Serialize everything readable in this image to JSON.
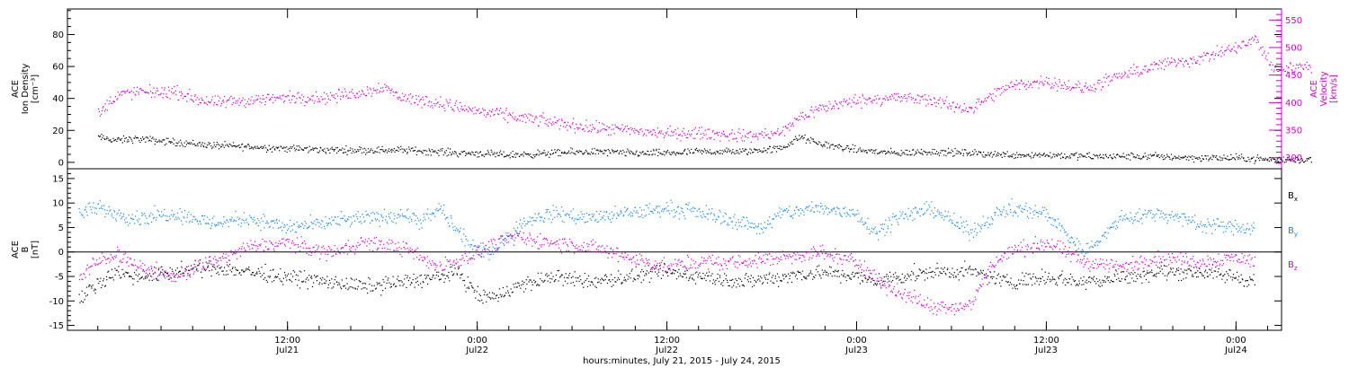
{
  "chart_data": [
    {
      "type": "scatter",
      "panel": "top",
      "left_axis_label": [
        "ACE",
        "Ion Density",
        "[cm⁻³]"
      ],
      "right_axis_label": [
        "ACE",
        "Velocity",
        "[km/s]"
      ],
      "ylim_left": [
        -4,
        96
      ],
      "ylim_right": [
        280,
        570
      ],
      "yticks_left": [
        "0",
        "20",
        "40",
        "60",
        "80"
      ],
      "yticks_right": [
        "300",
        "350",
        "400",
        "450",
        "500",
        "550"
      ],
      "colors": {
        "density": "#000000",
        "velocity": "#cc00cc"
      },
      "series": [
        {
          "name": "",
          "key": "density",
          "axis": "left",
          "x": [
            0.0,
            0.05,
            0.1,
            0.2,
            0.3,
            0.4,
            0.5,
            0.6,
            0.7,
            0.8,
            0.9,
            0.95,
            1.0,
            1.05,
            1.1,
            1.2,
            1.3,
            1.4,
            1.5,
            1.6,
            1.7,
            1.8,
            1.85,
            1.9,
            2.0,
            2.1,
            2.2,
            2.3,
            2.4,
            2.5,
            2.6,
            2.7,
            2.8,
            2.9,
            3.0,
            3.1,
            3.2
          ],
          "y": [
            16,
            14,
            15,
            13,
            11,
            10,
            9,
            8,
            8,
            8,
            7,
            6,
            6,
            5,
            5,
            6,
            7,
            6,
            6,
            7,
            7,
            9,
            16,
            12,
            8,
            6,
            7,
            6,
            5,
            5,
            4,
            4,
            4,
            3,
            3,
            2,
            2
          ]
        },
        {
          "name": "",
          "key": "velocity",
          "axis": "right",
          "x": [
            0.0,
            0.05,
            0.1,
            0.2,
            0.3,
            0.4,
            0.5,
            0.6,
            0.7,
            0.75,
            0.8,
            0.9,
            1.0,
            1.1,
            1.2,
            1.3,
            1.4,
            1.5,
            1.6,
            1.7,
            1.8,
            1.85,
            1.9,
            2.0,
            2.1,
            2.2,
            2.25,
            2.3,
            2.35,
            2.4,
            2.5,
            2.6,
            2.7,
            2.8,
            2.9,
            3.0,
            3.05,
            3.1,
            3.2
          ],
          "y": [
            380,
            415,
            420,
            420,
            400,
            405,
            410,
            410,
            420,
            430,
            410,
            400,
            385,
            375,
            365,
            355,
            350,
            345,
            345,
            340,
            345,
            375,
            390,
            405,
            410,
            405,
            395,
            390,
            410,
            430,
            440,
            425,
            450,
            470,
            480,
            500,
            515,
            460,
            470
          ]
        }
      ]
    },
    {
      "type": "scatter",
      "panel": "bottom",
      "left_axis_label": [
        "ACE",
        "B",
        "[nT]"
      ],
      "ylim": [
        -16,
        17
      ],
      "yticks": [
        "-15",
        "-10",
        "-5",
        "0",
        "5",
        "10",
        "15"
      ],
      "xticks": [
        {
          "x": 0.5,
          "time": "12:00",
          "date": "Jul21"
        },
        {
          "x": 1.0,
          "time": "0:00",
          "date": "Jul22"
        },
        {
          "x": 1.5,
          "time": "12:00",
          "date": "Jul22"
        },
        {
          "x": 2.0,
          "time": "0:00",
          "date": "Jul23"
        },
        {
          "x": 2.5,
          "time": "12:00",
          "date": "Jul23"
        },
        {
          "x": 3.0,
          "time": "0:00",
          "date": "Jul24"
        }
      ],
      "xlim": [
        -0.08,
        3.12
      ],
      "xlabel": "hours:minutes, July 21, 2015 - July 24, 2015",
      "colors": {
        "bx": "#000000",
        "by": "#1a86e0",
        "bz": "#cc00cc"
      },
      "legend": [
        {
          "key": "bx",
          "label": "B",
          "sub": "x",
          "color": "#000000"
        },
        {
          "key": "by",
          "label": "B",
          "sub": "y",
          "color": "#1a86e0"
        },
        {
          "key": "bz",
          "label": "B",
          "sub": "z",
          "color": "#cc00cc"
        }
      ],
      "series": [
        {
          "name": "Bx",
          "key": "bx",
          "x": [
            -0.05,
            0.0,
            0.05,
            0.1,
            0.2,
            0.3,
            0.4,
            0.5,
            0.6,
            0.7,
            0.8,
            0.9,
            0.95,
            1.0,
            1.05,
            1.1,
            1.2,
            1.3,
            1.4,
            1.5,
            1.6,
            1.7,
            1.8,
            1.9,
            2.0,
            2.05,
            2.1,
            2.2,
            2.3,
            2.4,
            2.5,
            2.6,
            2.7,
            2.8,
            2.9,
            3.0,
            3.05
          ],
          "y": [
            -10,
            -6,
            -4,
            -5,
            -4,
            -3,
            -4,
            -5,
            -6,
            -7,
            -6,
            -5,
            -4,
            -9,
            -9,
            -7,
            -5,
            -6,
            -5,
            -4,
            -5,
            -6,
            -5,
            -4,
            -5,
            -6,
            -5,
            -4,
            -4,
            -6,
            -5,
            -6,
            -5,
            -4,
            -4,
            -5,
            -6
          ]
        },
        {
          "name": "By",
          "key": "by",
          "x": [
            -0.05,
            0.0,
            0.05,
            0.1,
            0.2,
            0.3,
            0.4,
            0.5,
            0.6,
            0.7,
            0.75,
            0.8,
            0.85,
            0.9,
            0.95,
            1.0,
            1.05,
            1.1,
            1.15,
            1.2,
            1.3,
            1.4,
            1.5,
            1.6,
            1.7,
            1.75,
            1.8,
            1.9,
            2.0,
            2.05,
            2.1,
            2.2,
            2.3,
            2.35,
            2.4,
            2.5,
            2.6,
            2.7,
            2.8,
            2.9,
            3.0,
            3.05
          ],
          "y": [
            8,
            9,
            8,
            7,
            8,
            6,
            7,
            5,
            6,
            7,
            7,
            8,
            6,
            9,
            4,
            0,
            1,
            5,
            7,
            8,
            7,
            8,
            9,
            8,
            6,
            5,
            8,
            9,
            8,
            4,
            7,
            9,
            4,
            7,
            9,
            8,
            0,
            7,
            8,
            6,
            5,
            5
          ]
        },
        {
          "name": "Bz",
          "key": "bz",
          "x": [
            -0.05,
            0.0,
            0.05,
            0.1,
            0.2,
            0.3,
            0.4,
            0.5,
            0.6,
            0.7,
            0.8,
            0.9,
            1.0,
            1.05,
            1.1,
            1.2,
            1.3,
            1.4,
            1.5,
            1.6,
            1.7,
            1.8,
            1.9,
            2.0,
            2.05,
            2.1,
            2.2,
            2.3,
            2.35,
            2.4,
            2.5,
            2.6,
            2.7,
            2.8,
            2.9,
            3.0,
            3.05
          ],
          "y": [
            -5,
            -2,
            0,
            -3,
            -5,
            -2,
            1,
            2,
            0,
            2,
            1,
            -3,
            0,
            2,
            3,
            2,
            1,
            -1,
            -3,
            -2,
            -2,
            -1,
            0,
            -2,
            -5,
            -8,
            -11,
            -11,
            -3,
            0,
            2,
            -2,
            -3,
            -1,
            -2,
            -1,
            -2
          ]
        }
      ]
    }
  ]
}
